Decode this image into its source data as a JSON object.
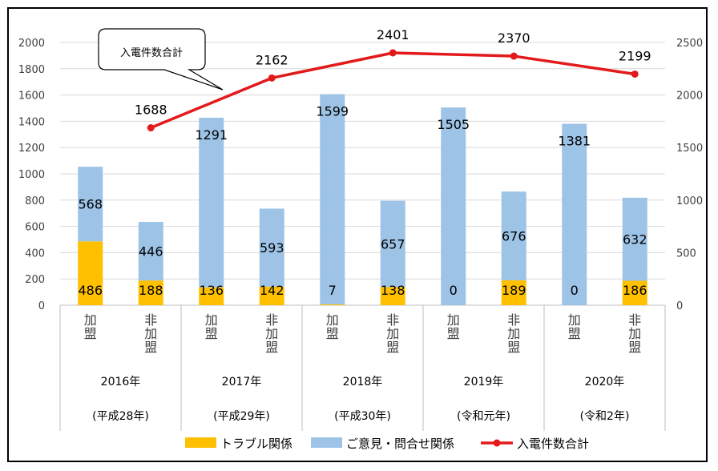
{
  "chart_data": {
    "type": "bar",
    "stacked": true,
    "categories": [
      "加盟",
      "非加盟",
      "加盟",
      "非加盟",
      "加盟",
      "非加盟",
      "加盟",
      "非加盟",
      "加盟",
      "非加盟"
    ],
    "groups": [
      {
        "year": "2016年",
        "era": "(平成28年)"
      },
      {
        "year": "2017年",
        "era": "(平成29年)"
      },
      {
        "year": "2018年",
        "era": "(平成30年)"
      },
      {
        "year": "2019年",
        "era": "(令和元年)"
      },
      {
        "year": "2020年",
        "era": "(令和2年)"
      }
    ],
    "series": [
      {
        "name": "トラブル関係",
        "color": "#FFC000",
        "values": [
          486,
          188,
          136,
          142,
          7,
          138,
          0,
          189,
          0,
          186
        ]
      },
      {
        "name": "ご意見・問合せ関係",
        "color": "#9DC3E6",
        "values": [
          568,
          446,
          1291,
          593,
          1599,
          657,
          1505,
          676,
          1381,
          632
        ]
      }
    ],
    "line_series": {
      "name": "入電件数合計",
      "color": "#E31A1C",
      "axis": "right",
      "points": [
        {
          "index": 1,
          "value": 1688
        },
        {
          "index": 3,
          "value": 2162
        },
        {
          "index": 5,
          "value": 2401
        },
        {
          "index": 7,
          "value": 2370
        },
        {
          "index": 9,
          "value": 2199
        }
      ]
    },
    "ylim_left": [
      0,
      2000
    ],
    "ylim_right": [
      0,
      2500
    ],
    "yticks_left": [
      0,
      200,
      400,
      600,
      800,
      1000,
      1200,
      1400,
      1600,
      1800,
      2000
    ],
    "yticks_right": [
      0,
      500,
      1000,
      1500,
      2000,
      2500
    ],
    "grid": true,
    "legend_position": "bottom",
    "callout": "入電件数合計"
  }
}
